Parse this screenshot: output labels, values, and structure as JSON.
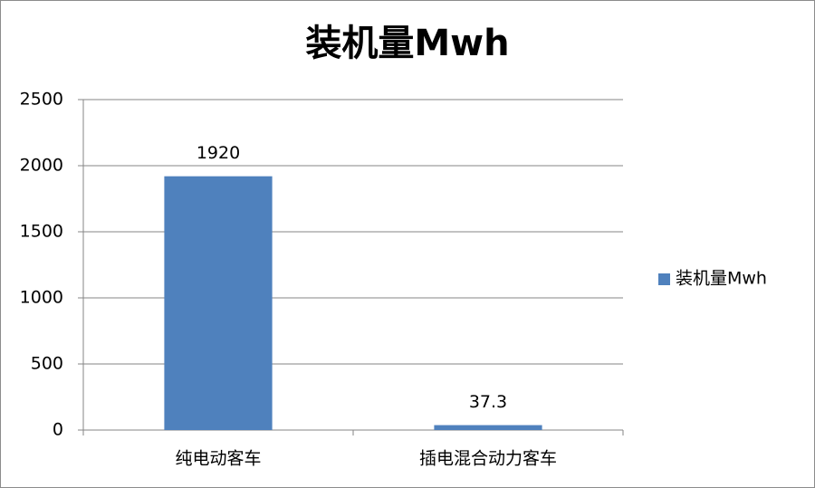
{
  "chart_data": {
    "type": "bar",
    "title": "装机量Mwh",
    "categories": [
      "纯电动客车",
      "插电混合动力客车"
    ],
    "series": [
      {
        "name": "装机量Mwh",
        "color": "#4f81bd",
        "values": [
          1920,
          37.3
        ]
      }
    ],
    "ylim": [
      0,
      2500
    ],
    "yticks": [
      0,
      500,
      1000,
      1500,
      2000,
      2500
    ],
    "grid": true,
    "legend": "right",
    "data_labels": true
  }
}
